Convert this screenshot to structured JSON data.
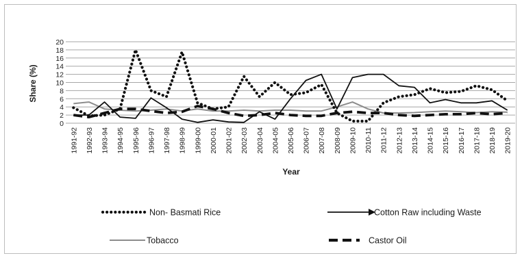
{
  "chart_data": {
    "type": "line",
    "title": "",
    "xlabel": "Year",
    "ylabel": "Share (%)",
    "ylim": [
      0,
      20
    ],
    "yticks": [
      0,
      2,
      4,
      6,
      8,
      10,
      12,
      14,
      16,
      18,
      20
    ],
    "grid": true,
    "legend_position": "bottom",
    "categories": [
      "1991-92",
      "1992-93",
      "1993-94",
      "1994-95",
      "1995-96",
      "1996-97",
      "1997-98",
      "1998-99",
      "1999-00",
      "2000-01",
      "2001-02",
      "2002-03",
      "2003-04",
      "2004-05",
      "2005-06",
      "2006-07",
      "2007-08",
      "2008-09",
      "2009-10",
      "2010-11",
      "2011-12",
      "2012-13",
      "2013-14",
      "2014-15",
      "2015-16",
      "2016-17",
      "2017-18",
      "2018-19",
      "2019-20"
    ],
    "series": [
      {
        "name": "Non- Basmati Rice",
        "style": "dotted",
        "color": "#111111",
        "values": [
          3.8,
          1.8,
          2.0,
          3.5,
          18.0,
          8.0,
          6.5,
          17.5,
          5.0,
          3.5,
          4.0,
          11.5,
          6.5,
          10.0,
          7.0,
          7.5,
          9.5,
          2.5,
          0.5,
          0.5,
          5.0,
          6.5,
          7.0,
          8.5,
          7.5,
          7.8,
          9.2,
          8.2,
          5.5
        ]
      },
      {
        "name": "Cotton Raw including Waste",
        "style": "solid",
        "color": "#111111",
        "values": [
          2.0,
          2.0,
          5.2,
          1.5,
          1.2,
          6.2,
          3.8,
          1.0,
          0.2,
          0.8,
          0.3,
          0.2,
          2.8,
          1.0,
          6.0,
          10.5,
          12.0,
          3.5,
          11.2,
          12.0,
          12.0,
          9.2,
          8.8,
          5.0,
          5.8,
          5.0,
          5.0,
          5.5,
          3.2
        ]
      },
      {
        "name": "Tobacco",
        "style": "solid",
        "color": "#8c8c8c",
        "values": [
          4.8,
          5.2,
          3.5,
          3.2,
          3.0,
          3.2,
          3.5,
          3.0,
          3.5,
          3.0,
          3.0,
          3.2,
          3.0,
          3.2,
          3.2,
          3.0,
          3.0,
          4.0,
          5.2,
          3.5,
          2.5,
          2.5,
          2.6,
          2.8,
          3.0,
          2.8,
          2.6,
          2.8,
          2.7
        ]
      },
      {
        "name": "Castor Oil",
        "style": "dashed",
        "color": "#111111",
        "values": [
          2.0,
          1.5,
          2.5,
          3.5,
          3.5,
          3.0,
          2.5,
          2.8,
          4.2,
          3.5,
          2.5,
          1.8,
          2.0,
          2.5,
          2.0,
          1.8,
          1.8,
          2.5,
          2.8,
          2.5,
          2.5,
          2.0,
          1.8,
          2.0,
          2.2,
          2.2,
          2.5,
          2.2,
          2.5
        ]
      }
    ]
  }
}
